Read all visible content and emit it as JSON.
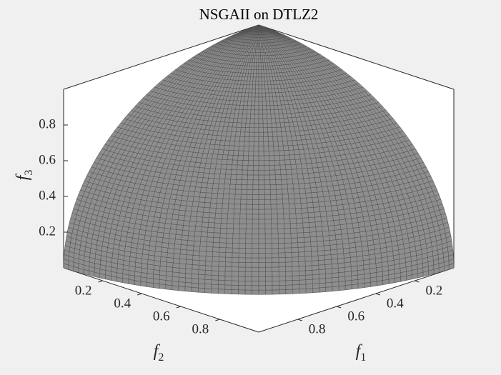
{
  "chart_data": {
    "type": "surface",
    "title": "NSGAII on DTLZ2",
    "xlabel": {
      "text": "f",
      "sub": "1"
    },
    "ylabel": {
      "text": "f",
      "sub": "2"
    },
    "zlabel": {
      "text": "f",
      "sub": "3"
    },
    "xlim": [
      0,
      1
    ],
    "ylim": [
      0,
      1
    ],
    "zlim": [
      0,
      1
    ],
    "xticks": [
      0.2,
      0.4,
      0.6,
      0.8
    ],
    "yticks": [
      0.2,
      0.4,
      0.6,
      0.8
    ],
    "zticks": [
      0.2,
      0.4,
      0.6,
      0.8
    ],
    "color": "#8e8e8e",
    "edge_color": "#4f4f4f"
  }
}
